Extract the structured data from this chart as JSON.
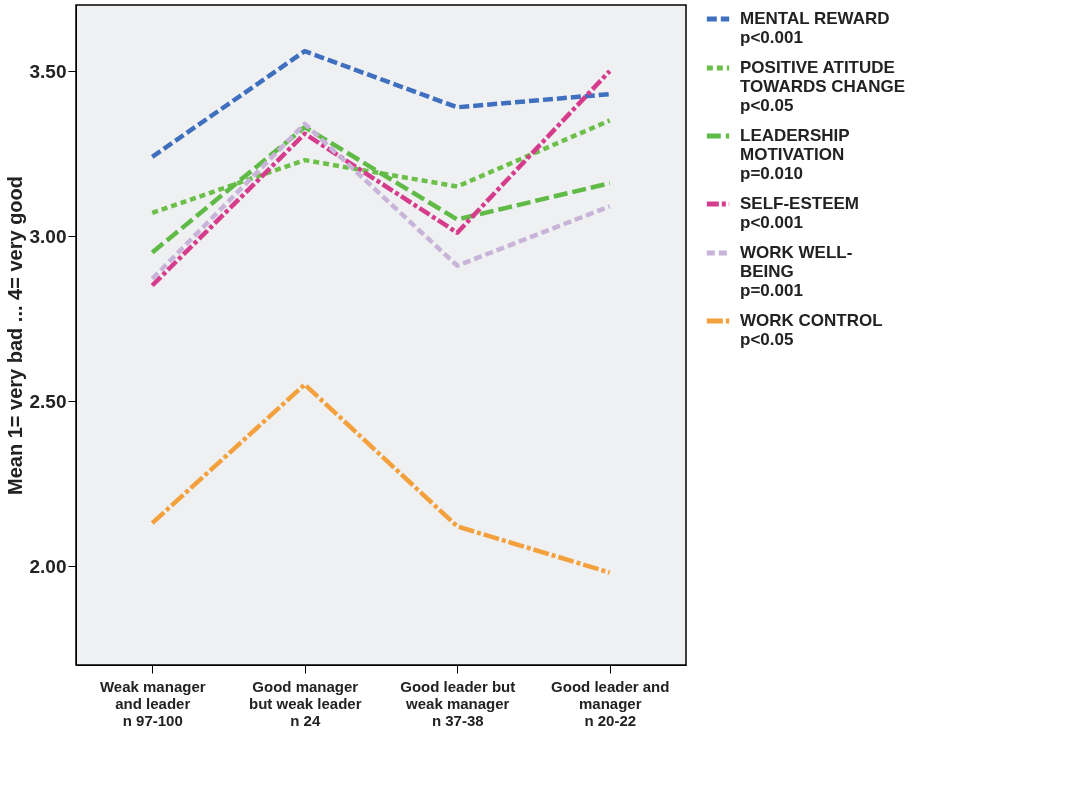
{
  "chart_data": {
    "type": "line",
    "ylabel": "Mean  1= very bad ... 4= very good",
    "categories": [
      "Weak manager\nand leader\nn 97-100",
      "Good manager\nbut weak leader\nn 24",
      "Good leader but\nweak manager\nn 37-38",
      "Good leader and\nmanager\nn 20-22"
    ],
    "series": [
      {
        "name": "MENTAL REWARD\np<0.001",
        "color": "#3f6fbf",
        "values": [
          3.24,
          3.56,
          3.39,
          3.43
        ]
      },
      {
        "name": "POSITIVE ATITUDE\nTOWARDS CHANGE\np<0.05",
        "color": "#6cc04a",
        "values": [
          3.07,
          3.23,
          3.15,
          3.35
        ]
      },
      {
        "name": "LEADERSHIP\nMOTIVATION\np=0.010",
        "color": "#5fba46",
        "values": [
          2.95,
          3.33,
          3.05,
          3.16
        ]
      },
      {
        "name": "SELF-ESTEEM\np<0.001",
        "color": "#d63c8c",
        "values": [
          2.85,
          3.31,
          3.01,
          3.5
        ]
      },
      {
        "name": "WORK WELL-\nBEING\np=0.001",
        "color": "#c8b4d8",
        "values": [
          2.87,
          3.34,
          2.91,
          3.09
        ]
      },
      {
        "name": "WORK CONTROL\np<0.05",
        "color": "#f4a03c",
        "values": [
          2.13,
          2.55,
          2.12,
          1.98
        ]
      }
    ],
    "ylim": [
      1.7,
      3.7
    ],
    "yticks": [
      {
        "value": 2.0,
        "label": "2.00"
      },
      {
        "value": 2.5,
        "label": "2.50"
      },
      {
        "value": 3.0,
        "label": "3.00"
      },
      {
        "value": 3.5,
        "label": "3.50"
      }
    ],
    "grid": false,
    "legend": "top right",
    "line_style": "dashed",
    "marker": "none"
  }
}
